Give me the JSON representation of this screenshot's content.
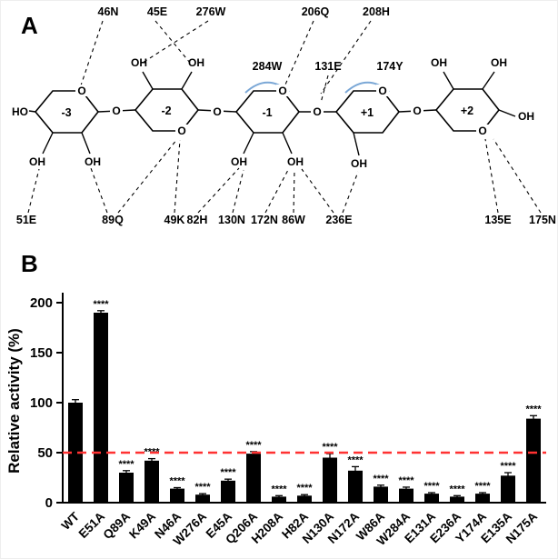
{
  "panelA": {
    "label": "A",
    "top_residues": [
      "46N",
      "45E",
      "276W",
      "206Q",
      "208H"
    ],
    "mid_residues": [
      "284W",
      "131E",
      "174Y"
    ],
    "bottom_residues": [
      "51E",
      "89Q",
      "49K",
      "82H",
      "130N",
      "172N",
      "86W",
      "236E",
      "135E",
      "175N"
    ],
    "highlighted_residues": [
      "131E",
      "236E"
    ],
    "subsites": [
      "-3",
      "-2",
      "-1",
      "+1",
      "+2"
    ],
    "atoms": {
      "o": "O",
      "oh": "OH",
      "ho": "HO"
    }
  },
  "panelB": {
    "label": "B"
  },
  "colors": {
    "highlight": "#e8000b",
    "arc": "#7aa7d6",
    "bar": "#000000",
    "ref_line": "#ff3232"
  },
  "chart_data": {
    "type": "bar",
    "title": "",
    "ylabel": "Relative activity (%)",
    "xlabel": "",
    "categories": [
      "WT",
      "E51A",
      "Q89A",
      "K49A",
      "N46A",
      "W276A",
      "E45A",
      "Q206A",
      "H208A",
      "H82A",
      "N130A",
      "N172A",
      "W86A",
      "W284A",
      "E131A",
      "E236A",
      "Y174A",
      "E135A",
      "N175A"
    ],
    "values": [
      100,
      190,
      30,
      42,
      14,
      8,
      22,
      49,
      6,
      7,
      45,
      32,
      16,
      14,
      9,
      6,
      9,
      27,
      84
    ],
    "errors": [
      3,
      2,
      2,
      2,
      1,
      1,
      1.5,
      2,
      1,
      1,
      4,
      4,
      1.5,
      1.5,
      1,
      1,
      1,
      3,
      3
    ],
    "significance": [
      "",
      "****",
      "****",
      "****",
      "****",
      "****",
      "****",
      "****",
      "****",
      "****",
      "****",
      "****",
      "****",
      "****",
      "****",
      "****",
      "****",
      "****",
      "****"
    ],
    "yticks": [
      0,
      50,
      100,
      150,
      200
    ],
    "ylim": [
      0,
      210
    ],
    "reference_line": {
      "value": 50,
      "style": "dashed",
      "color": "#ff3232"
    },
    "grid": false,
    "legend": false
  }
}
